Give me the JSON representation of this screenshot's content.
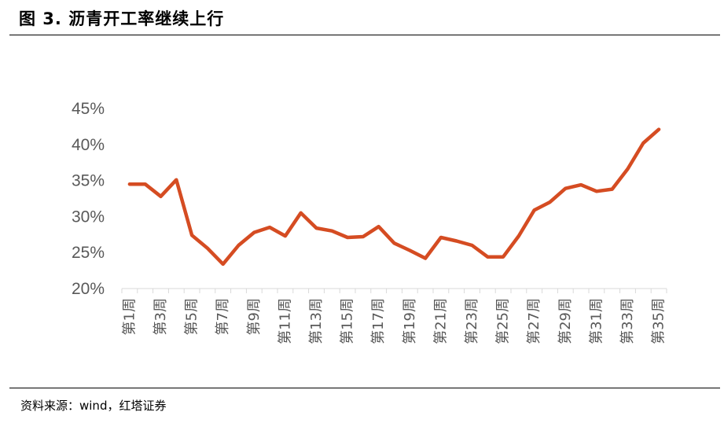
{
  "figure": {
    "title": "图 3. 沥青开工率继续上行",
    "source": "资料来源：wind，红塔证券"
  },
  "chart_data": {
    "type": "line",
    "title": "",
    "xlabel": "",
    "ylabel": "",
    "ylim": [
      20,
      45
    ],
    "yticks": [
      "20%",
      "25%",
      "30%",
      "35%",
      "40%",
      "45%"
    ],
    "ytick_values": [
      20,
      25,
      30,
      35,
      40,
      45
    ],
    "grid": false,
    "legend": "none",
    "x": [
      "第1周",
      "第2周",
      "第3周",
      "第4周",
      "第5周",
      "第6周",
      "第7周",
      "第8周",
      "第9周",
      "第10周",
      "第11周",
      "第12周",
      "第13周",
      "第14周",
      "第15周",
      "第16周",
      "第17周",
      "第18周",
      "第19周",
      "第20周",
      "第21周",
      "第22周",
      "第23周",
      "第24周",
      "第25周",
      "第26周",
      "第27周",
      "第28周",
      "第29周",
      "第30周",
      "第31周",
      "第32周",
      "第33周",
      "第34周",
      "第35周"
    ],
    "x_labels_shown": [
      "第1周",
      "第3周",
      "第5周",
      "第7周",
      "第9周",
      "第11周",
      "第13周",
      "第15周",
      "第17周",
      "第19周",
      "第21周",
      "第23周",
      "第25周",
      "第27周",
      "第29周",
      "第31周",
      "第33周",
      "第35周"
    ],
    "series": [
      {
        "color": "#d54c22",
        "values": [
          34.5,
          34.5,
          32.8,
          35.1,
          27.4,
          25.6,
          23.4,
          26.0,
          27.8,
          28.5,
          27.3,
          30.5,
          28.4,
          28.0,
          27.1,
          27.2,
          28.6,
          26.3,
          25.3,
          24.2,
          27.1,
          26.6,
          26.0,
          24.4,
          24.4,
          27.3,
          30.9,
          32.0,
          33.9,
          34.4,
          33.5,
          33.8,
          36.6,
          40.2,
          42.1
        ]
      }
    ]
  }
}
